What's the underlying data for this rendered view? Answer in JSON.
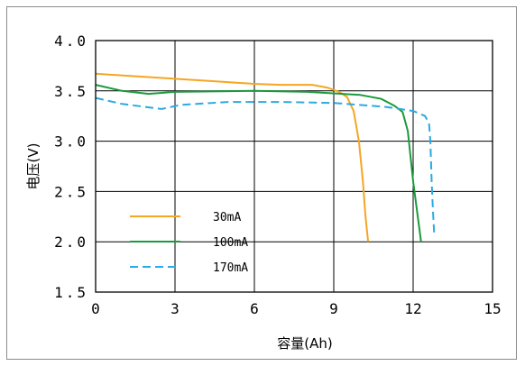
{
  "chart_data": {
    "type": "line",
    "title": "",
    "xlabel": "容量(Ah)",
    "ylabel": "电压(V)",
    "xlim": [
      0,
      15
    ],
    "ylim": [
      1.5,
      4.0
    ],
    "x_ticks": [
      "0",
      "3",
      "6",
      "9",
      "12",
      "15"
    ],
    "y_ticks": [
      "1.5",
      "2.0",
      "2.5",
      "3.0",
      "3.5",
      "4.0"
    ],
    "grid": true,
    "legend_position": "lower-left",
    "series": [
      {
        "name": "30mA",
        "color": "#f5a623",
        "dash": "solid",
        "points": [
          [
            0,
            3.67
          ],
          [
            3,
            3.62
          ],
          [
            6,
            3.57
          ],
          [
            7,
            3.56
          ],
          [
            8.2,
            3.56
          ],
          [
            8.8,
            3.53
          ],
          [
            9.2,
            3.49
          ],
          [
            9.5,
            3.44
          ],
          [
            9.75,
            3.3
          ],
          [
            9.95,
            3.0
          ],
          [
            10.1,
            2.6
          ],
          [
            10.2,
            2.25
          ],
          [
            10.3,
            2.0
          ]
        ]
      },
      {
        "name": "100mA",
        "color": "#1a9a3c",
        "dash": "solid",
        "points": [
          [
            0,
            3.56
          ],
          [
            1,
            3.5
          ],
          [
            2,
            3.47
          ],
          [
            3,
            3.49
          ],
          [
            6,
            3.5
          ],
          [
            8,
            3.49
          ],
          [
            10,
            3.46
          ],
          [
            10.8,
            3.42
          ],
          [
            11.3,
            3.35
          ],
          [
            11.6,
            3.29
          ],
          [
            11.8,
            3.1
          ],
          [
            12,
            2.6
          ],
          [
            12.15,
            2.3
          ],
          [
            12.3,
            2.0
          ]
        ]
      },
      {
        "name": "170mA",
        "color": "#2aaae2",
        "dash": "dashed",
        "points": [
          [
            0,
            3.43
          ],
          [
            1,
            3.37
          ],
          [
            2.5,
            3.32
          ],
          [
            3.2,
            3.36
          ],
          [
            5,
            3.39
          ],
          [
            7,
            3.39
          ],
          [
            9,
            3.38
          ],
          [
            11,
            3.34
          ],
          [
            12,
            3.3
          ],
          [
            12.45,
            3.25
          ],
          [
            12.6,
            3.18
          ],
          [
            12.65,
            3.0
          ],
          [
            12.7,
            2.6
          ],
          [
            12.75,
            2.3
          ],
          [
            12.8,
            2.05
          ]
        ]
      }
    ]
  }
}
